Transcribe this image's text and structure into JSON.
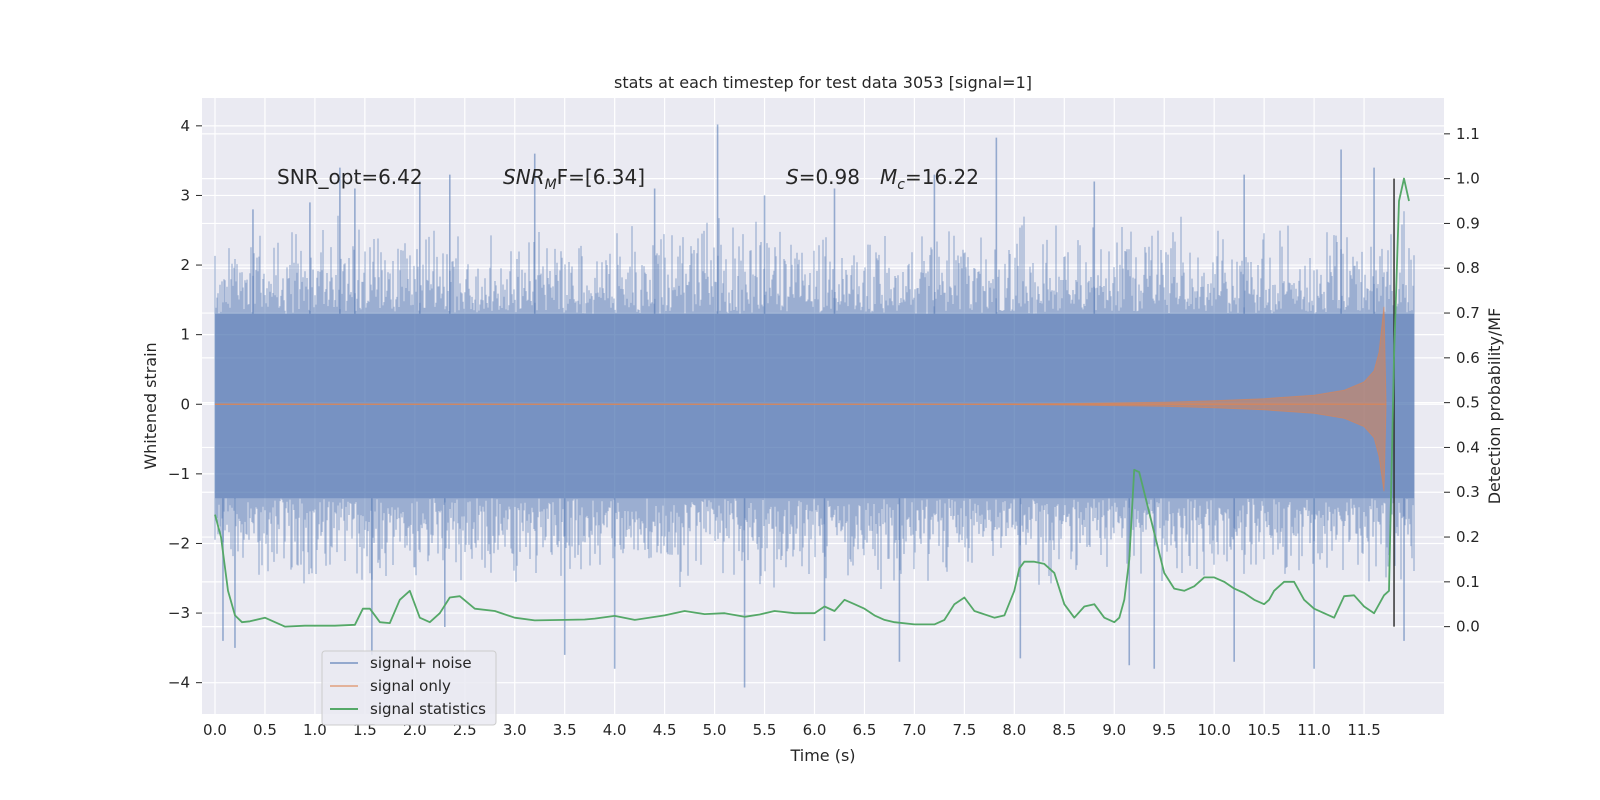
{
  "chart_data": {
    "type": "line",
    "title": "stats at each timestep for test data 3053 [signal=1]",
    "xlabel": "Time (s)",
    "ylabel_left": "Whitened strain",
    "ylabel_right": "Detection probability/MF",
    "xlim": [
      -0.13,
      12.3
    ],
    "ylim_left": [
      -4.45,
      4.4
    ],
    "ylim_right": [
      -0.195,
      1.18
    ],
    "x_ticks": [
      "0.0",
      "0.5",
      "1.0",
      "1.5",
      "2.0",
      "2.5",
      "3.0",
      "3.5",
      "4.0",
      "4.5",
      "5.0",
      "5.5",
      "6.0",
      "6.5",
      "7.0",
      "7.5",
      "8.0",
      "8.5",
      "9.0",
      "9.5",
      "10.0",
      "10.5",
      "11.0",
      "11.5"
    ],
    "y_ticks_left": [
      "4",
      "3",
      "2",
      "1",
      "0",
      "−1",
      "−2",
      "−3",
      "−4"
    ],
    "y_ticks_right": [
      "1.1",
      "1.0",
      "0.9",
      "0.8",
      "0.7",
      "0.6",
      "0.5",
      "0.4",
      "0.3",
      "0.2",
      "0.1",
      "0.0"
    ],
    "grid": true,
    "legend_position": "lower-left",
    "annotations": {
      "snr_opt": "SNR_opt=6.42",
      "snr_mf_prefix": "SNR",
      "snr_mf_sub": "M",
      "snr_mf_suffix": "F=[6.34]",
      "s_label": "S",
      "s_value": "=0.98",
      "mc_label": "M",
      "mc_sub": "c",
      "mc_value": "=16.22"
    },
    "merger_time": 11.8,
    "colors": {
      "background": "#eaeaf2",
      "grid": "#ffffff",
      "noise": "#4c72b0",
      "signal": "#dd8452",
      "stats": "#55a868",
      "marker": "#333333"
    },
    "series": [
      {
        "name": "signal+ noise",
        "kind": "noise_band",
        "x_range": [
          0.0,
          12.0
        ],
        "dense_band": [
          -1.35,
          1.3
        ],
        "typical_envelope": [
          -2.3,
          2.4
        ],
        "peaks": [
          {
            "x": 0.38,
            "y": 2.8
          },
          {
            "x": 0.95,
            "y": 2.9
          },
          {
            "x": 1.25,
            "y": 3.4
          },
          {
            "x": 1.4,
            "y": 3.1
          },
          {
            "x": 2.05,
            "y": 3.2
          },
          {
            "x": 2.35,
            "y": 3.3
          },
          {
            "x": 3.2,
            "y": 3.6
          },
          {
            "x": 4.4,
            "y": 3.1
          },
          {
            "x": 5.03,
            "y": 4.02
          },
          {
            "x": 5.5,
            "y": 3.0
          },
          {
            "x": 6.2,
            "y": 3.1
          },
          {
            "x": 7.2,
            "y": 3.3
          },
          {
            "x": 7.82,
            "y": 3.83
          },
          {
            "x": 8.8,
            "y": 3.2
          },
          {
            "x": 10.3,
            "y": 3.3
          },
          {
            "x": 11.27,
            "y": 3.66
          },
          {
            "x": 11.6,
            "y": 3.4
          }
        ],
        "troughs": [
          {
            "x": 0.08,
            "y": -3.4
          },
          {
            "x": 0.2,
            "y": -3.5
          },
          {
            "x": 1.57,
            "y": -3.6
          },
          {
            "x": 2.3,
            "y": -3.2
          },
          {
            "x": 3.5,
            "y": -3.6
          },
          {
            "x": 4.0,
            "y": -3.8
          },
          {
            "x": 5.3,
            "y": -4.07
          },
          {
            "x": 6.1,
            "y": -3.4
          },
          {
            "x": 6.85,
            "y": -3.7
          },
          {
            "x": 8.06,
            "y": -3.65
          },
          {
            "x": 9.15,
            "y": -3.75
          },
          {
            "x": 9.4,
            "y": -3.8
          },
          {
            "x": 10.2,
            "y": -3.7
          },
          {
            "x": 11.0,
            "y": -3.8
          },
          {
            "x": 11.9,
            "y": -3.4
          }
        ]
      },
      {
        "name": "signal only",
        "kind": "chirp",
        "x": [
          0.0,
          7.5,
          8.5,
          9.5,
          10.0,
          10.5,
          11.0,
          11.3,
          11.5,
          11.6,
          11.65,
          11.7,
          11.72
        ],
        "envelope": [
          0.0,
          0.0,
          0.01,
          0.03,
          0.05,
          0.08,
          0.13,
          0.2,
          0.32,
          0.48,
          0.75,
          1.4,
          0.0
        ],
        "envelope_low": [
          0.0,
          0.0,
          0.01,
          0.03,
          0.05,
          0.08,
          0.13,
          0.2,
          0.32,
          0.48,
          0.75,
          1.25,
          0.0
        ]
      },
      {
        "name": "signal statistics",
        "kind": "line",
        "axis": "right",
        "x": [
          0.0,
          0.06,
          0.13,
          0.2,
          0.27,
          0.35,
          0.5,
          0.7,
          0.9,
          1.2,
          1.4,
          1.48,
          1.55,
          1.65,
          1.75,
          1.85,
          1.95,
          2.05,
          2.15,
          2.25,
          2.35,
          2.45,
          2.6,
          2.8,
          3.0,
          3.2,
          3.5,
          3.7,
          3.8,
          4.0,
          4.2,
          4.5,
          4.7,
          4.9,
          5.1,
          5.3,
          5.45,
          5.6,
          5.8,
          6.0,
          6.1,
          6.2,
          6.3,
          6.4,
          6.5,
          6.6,
          6.7,
          6.8,
          7.0,
          7.2,
          7.3,
          7.4,
          7.5,
          7.6,
          7.8,
          7.9,
          8.0,
          8.05,
          8.1,
          8.2,
          8.3,
          8.4,
          8.5,
          8.6,
          8.7,
          8.8,
          8.9,
          9.0,
          9.05,
          9.1,
          9.15,
          9.2,
          9.25,
          9.3,
          9.4,
          9.5,
          9.6,
          9.7,
          9.8,
          9.9,
          10.0,
          10.1,
          10.2,
          10.3,
          10.4,
          10.5,
          10.55,
          10.6,
          10.7,
          10.8,
          10.9,
          11.0,
          11.1,
          11.2,
          11.3,
          11.4,
          11.5,
          11.6,
          11.65,
          11.7,
          11.75,
          11.8,
          11.85,
          11.9,
          11.95
        ],
        "y": [
          0.25,
          0.2,
          0.08,
          0.025,
          0.01,
          0.012,
          0.02,
          0.0,
          0.002,
          0.002,
          0.004,
          0.04,
          0.04,
          0.01,
          0.008,
          0.06,
          0.08,
          0.02,
          0.01,
          0.03,
          0.065,
          0.068,
          0.04,
          0.035,
          0.02,
          0.014,
          0.015,
          0.016,
          0.018,
          0.024,
          0.015,
          0.025,
          0.035,
          0.028,
          0.03,
          0.022,
          0.027,
          0.035,
          0.03,
          0.03,
          0.045,
          0.035,
          0.06,
          0.05,
          0.04,
          0.025,
          0.015,
          0.01,
          0.005,
          0.005,
          0.015,
          0.05,
          0.065,
          0.035,
          0.02,
          0.025,
          0.08,
          0.13,
          0.145,
          0.145,
          0.14,
          0.12,
          0.05,
          0.02,
          0.045,
          0.05,
          0.02,
          0.01,
          0.02,
          0.06,
          0.15,
          0.35,
          0.345,
          0.3,
          0.21,
          0.12,
          0.085,
          0.08,
          0.09,
          0.11,
          0.11,
          0.1,
          0.085,
          0.075,
          0.06,
          0.05,
          0.06,
          0.08,
          0.1,
          0.1,
          0.06,
          0.04,
          0.03,
          0.02,
          0.068,
          0.07,
          0.045,
          0.03,
          0.05,
          0.07,
          0.08,
          0.6,
          0.95,
          1.0,
          0.95
        ]
      }
    ]
  }
}
